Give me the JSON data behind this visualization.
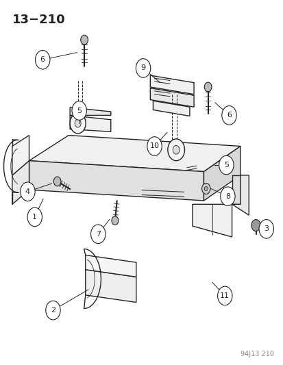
{
  "title": "13−210",
  "footer": "94J13 210",
  "bg_color": "#ffffff",
  "title_fontsize": 13,
  "footer_fontsize": 7,
  "callout_fontsize": 8,
  "dark": "#222222",
  "lw_main": 1.0,
  "lw_thin": 0.6
}
